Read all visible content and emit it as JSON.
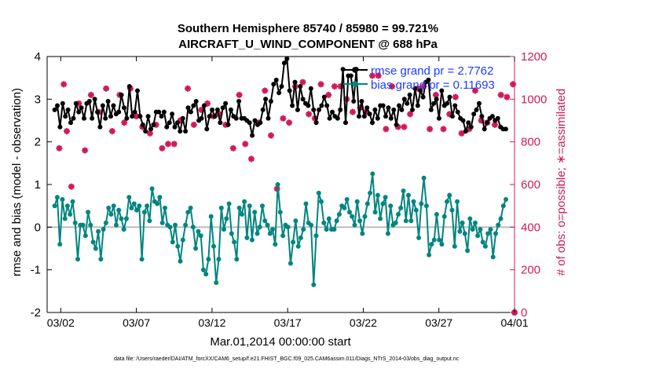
{
  "chart_data": {
    "type": "line",
    "title": "Southern Hemisphere 85740 / 85980 = 99.721%",
    "subtitle": "AIRCRAFT_U_WIND_COMPONENT @ 688 hPa",
    "ylabel_left": "rmse and bias (model - observation)",
    "ylabel_right": "# of obs: o=possible; ∗=assimilated",
    "xlabel": "Mar.01,2014 00:00:00 start",
    "footer": "data file: /Users/raeder/DAI/ATM_forcXX/CAM6_setup/f.e21.FHIST_BGC.f09_025.CAM6assim.011/Diags_NTrS_2014-03/obs_diag_output.nc",
    "x_ticks": [
      "03/02",
      "03/07",
      "03/12",
      "03/17",
      "03/22",
      "03/27",
      "04/01"
    ],
    "x_tick_days": [
      1,
      6,
      11,
      16,
      21,
      26,
      31
    ],
    "xlim_days": [
      0.1,
      31
    ],
    "ylim_left": [
      -2,
      4
    ],
    "yticks_left": [
      "4",
      "3",
      "2",
      "1",
      "0",
      "-1",
      "-2"
    ],
    "ylim_right": [
      0,
      1200
    ],
    "yticks_right": [
      "1200",
      "1000",
      "800",
      "600",
      "400",
      "200",
      "0"
    ],
    "colors": {
      "rmse": "#000000",
      "bias": "#00857f",
      "obs": "#d11a59",
      "zero_line": "#bbbbbb",
      "legend_text": "#1a3cff"
    },
    "series": [
      {
        "name": "rmse grand pr = 2.7762",
        "axis": "left",
        "values": [
          2.75,
          2.85,
          2.35,
          2.9,
          2.6,
          2.75,
          2.45,
          2.55,
          2.9,
          2.7,
          2.8,
          2.55,
          2.9,
          2.95,
          2.55,
          3.0,
          2.7,
          2.35,
          2.85,
          2.55,
          2.95,
          2.6,
          2.85,
          2.65,
          2.7,
          3.1,
          2.8,
          2.55,
          3.3,
          2.6,
          2.7,
          3.2,
          2.6,
          2.4,
          2.25,
          2.6,
          2.3,
          2.4,
          2.7,
          2.7,
          2.6,
          2.7,
          2.35,
          2.45,
          2.65,
          2.35,
          2.45,
          2.25,
          2.55,
          2.25,
          2.8,
          2.7,
          2.85,
          2.95,
          2.5,
          2.55,
          2.85,
          2.3,
          2.6,
          2.75,
          2.6,
          2.75,
          2.45,
          2.8,
          2.9,
          2.4,
          2.75,
          2.6,
          2.55,
          2.95,
          2.55,
          2.55,
          2.5,
          2.45,
          2.15,
          2.5,
          2.4,
          2.45,
          2.75,
          3.0,
          2.55,
          2.95,
          3.35,
          3.45,
          3.15,
          3.3,
          3.85,
          3.95,
          3.2,
          2.85,
          3.4,
          2.75,
          3.3,
          3.0,
          2.9,
          2.85,
          3.25,
          2.75,
          2.45,
          2.75,
          2.85,
          3.05,
          2.85,
          2.55,
          2.7,
          2.6,
          2.55,
          2.75,
          3.7,
          2.45,
          3.55,
          3.55,
          2.95,
          3.7,
          2.6,
          2.95,
          2.6,
          2.8,
          2.65,
          2.45,
          2.75,
          2.55,
          2.85,
          2.85,
          2.6,
          2.8,
          2.55,
          2.75,
          2.4,
          2.85,
          2.75,
          3.0,
          2.9,
          3.1,
          2.75,
          3.25,
          2.85,
          3.2,
          3.05,
          3.4,
          3.45,
          2.75,
          2.9,
          3.0,
          2.55,
          3.2,
          2.85,
          2.9,
          3.05,
          2.6,
          2.85,
          2.7,
          2.55,
          2.5,
          2.25,
          2.45,
          2.35,
          2.65,
          2.75,
          2.9,
          2.6,
          2.3,
          2.45,
          2.55,
          2.6,
          2.5,
          2.55,
          2.35,
          2.3,
          2.3
        ]
      },
      {
        "name": "bias grand pr = 0.11693",
        "axis": "left",
        "values": [
          0.5,
          0.7,
          -0.4,
          0.65,
          0.2,
          0.5,
          0.3,
          0.6,
          0.1,
          -0.75,
          0.05,
          0.05,
          -0.2,
          0.35,
          0.05,
          -0.35,
          -0.5,
          -0.1,
          -0.75,
          -0.05,
          0.1,
          0.45,
          0.3,
          0.5,
          0.05,
          0.4,
          0.2,
          -0.05,
          0.2,
          0.7,
          0.45,
          0.55,
          0.4,
          0.5,
          -0.75,
          0.35,
          0.5,
          0.15,
          0.9,
          0.6,
          0.55,
          0.7,
          0.1,
          0.45,
          0.05,
          0.0,
          -0.35,
          0.05,
          -0.45,
          -0.8,
          -0.3,
          0.05,
          0.35,
          0.45,
          0.0,
          -0.5,
          -0.1,
          -0.2,
          -1.0,
          -1.1,
          -0.75,
          0.25,
          -0.45,
          -1.3,
          -0.75,
          0.45,
          -0.05,
          0.2,
          0.55,
          -0.15,
          -0.35,
          -0.75,
          0.45,
          0.3,
          0.6,
          -0.25,
          0.5,
          -0.3,
          0.35,
          -0.15,
          0.0,
          0.5,
          0.15,
          0.05,
          -0.15,
          -0.05,
          -0.4,
          1.0,
          0.35,
          -0.2,
          0.05,
          0.0,
          -0.85,
          -0.35,
          0.15,
          -0.45,
          -0.25,
          -0.05,
          0.55,
          0.1,
          0.05,
          -1.35,
          -0.2,
          0.8,
          0.6,
          0.1,
          -0.05,
          0.2,
          -0.05,
          -0.05,
          0.15,
          0.3,
          0.5,
          0.45,
          0.65,
          0.35,
          0.25,
          0.05,
          0.6,
          0.15,
          -0.15,
          0.25,
          0.55,
          0.8,
          1.25,
          0.35,
          0.75,
          0.2,
          0.55,
          0.7,
          -0.15,
          0.5,
          0.05,
          0.1,
          0.3,
          0.45,
          0.85,
          0.15,
          0.75,
          0.15,
          0.6,
          0.4,
          -0.25,
          0.55,
          1.15,
          0.5,
          -0.65,
          -0.4,
          -0.3,
          0.3,
          -0.3,
          -0.4,
          0.25,
          0.6,
          0.75,
          0.4,
          -0.45,
          0.6,
          -0.1,
          0.1,
          -0.15,
          -0.55,
          0.2,
          -0.05,
          0.1,
          -0.2,
          -0.05,
          -0.35,
          -0.45,
          -0.15,
          -0.05,
          -0.7,
          -0.15,
          0.05,
          0.2,
          0.5,
          0.65
        ]
      },
      {
        "name": "# of obs assimilated",
        "axis": "right",
        "x_days": [
          0.9,
          1.2,
          1.4,
          1.7,
          2.2,
          2.6,
          3.0,
          3.5,
          4.0,
          4.4,
          4.9,
          5.2,
          5.6,
          6.0,
          6.4,
          6.9,
          7.3,
          7.7,
          8.1,
          8.5,
          8.9,
          9.4,
          9.8,
          10.3,
          10.7,
          11.1,
          11.5,
          11.9,
          12.4,
          12.8,
          13.2,
          13.6,
          14.1,
          14.5,
          14.9,
          15.3,
          15.7,
          16.1,
          16.5,
          17.0,
          17.4,
          17.8,
          18.2,
          18.7,
          19.1,
          19.5,
          19.9,
          20.3,
          20.8,
          21.2,
          21.6,
          22.0,
          22.5,
          22.9,
          23.3,
          23.7,
          24.1,
          24.6,
          25.0,
          25.4,
          25.8,
          26.3,
          26.7,
          27.1,
          27.5,
          28.0,
          28.4,
          28.8,
          29.2,
          29.7,
          30.1,
          30.5,
          30.9
        ],
        "values": [
          770,
          1070,
          850,
          590,
          980,
          760,
          1020,
          940,
          1050,
          850,
          1020,
          890,
          1050,
          920,
          870,
          840,
          880,
          770,
          790,
          790,
          900,
          1050,
          880,
          950,
          980,
          920,
          930,
          880,
          770,
          1020,
          790,
          720,
          890,
          1040,
          830,
          580,
          910,
          890,
          1060,
          1080,
          930,
          910,
          1070,
          1020,
          1060,
          1060,
          1000,
          940,
          960,
          940,
          1110,
          1110,
          860,
          1060,
          870,
          870,
          930,
          1050,
          1060,
          860,
          1020,
          860,
          930,
          1010,
          840,
          860,
          1040,
          900,
          890,
          880,
          1020,
          1010,
          1070
        ]
      }
    ],
    "obs_possible_scatter_description": "magenta asterisk points scattered roughly between 400 and 1100 on the right axis throughout the month"
  },
  "legend": {
    "rmse_label": "rmse grand pr = 2.7762",
    "bias_label": "bias grand pr = 0.11693"
  }
}
